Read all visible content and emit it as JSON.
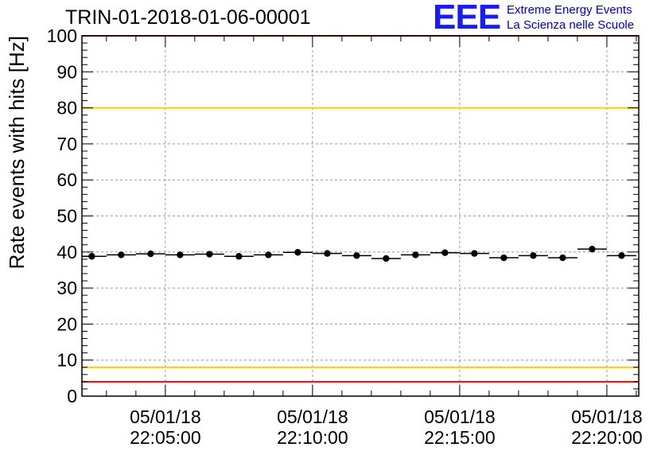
{
  "header": {
    "run_title": "TRIN-01-2018-01-06-00001",
    "logo_mark": "EEE",
    "logo_line1": "Extreme Energy Events",
    "logo_line2": "La Scienza nelle Scuole"
  },
  "colors": {
    "axis": "#000000",
    "grid": "#9a9a9a",
    "marker": "#000000",
    "red_threshold": "#ff0000",
    "yellow_threshold": "#ffcc00",
    "logo": "#1a1aff"
  },
  "chart_data": {
    "type": "scatter",
    "title": "TRIN-01-2018-01-06-00001",
    "ylabel": "Rate events with hits [Hz]",
    "xlabel": "",
    "ylim": [
      0,
      100
    ],
    "yticks": [
      0,
      10,
      20,
      30,
      40,
      50,
      60,
      70,
      80,
      90,
      100
    ],
    "xlim": [
      "05/01/18 22:02:10",
      "05/01/18 22:21:05"
    ],
    "xticks": [
      {
        "date": "05/01/18",
        "time": "22:05:00"
      },
      {
        "date": "05/01/18",
        "time": "22:10:00"
      },
      {
        "date": "05/01/18",
        "time": "22:15:00"
      },
      {
        "date": "05/01/18",
        "time": "22:20:00"
      }
    ],
    "grid": true,
    "threshold_lines": [
      {
        "value": 100,
        "color": "red"
      },
      {
        "value": 80,
        "color": "yellow"
      },
      {
        "value": 8,
        "color": "yellow"
      },
      {
        "value": 4,
        "color": "red"
      }
    ],
    "series": [
      {
        "points": [
          {
            "x": "22:02:30",
            "y": 38.8
          },
          {
            "x": "22:03:30",
            "y": 39.2
          },
          {
            "x": "22:04:30",
            "y": 39.5
          },
          {
            "x": "22:05:30",
            "y": 39.2
          },
          {
            "x": "22:06:30",
            "y": 39.4
          },
          {
            "x": "22:07:30",
            "y": 38.8
          },
          {
            "x": "22:08:30",
            "y": 39.2
          },
          {
            "x": "22:09:30",
            "y": 39.9
          },
          {
            "x": "22:10:30",
            "y": 39.6
          },
          {
            "x": "22:11:30",
            "y": 39.0
          },
          {
            "x": "22:12:30",
            "y": 38.2
          },
          {
            "x": "22:13:30",
            "y": 39.2
          },
          {
            "x": "22:14:30",
            "y": 39.8
          },
          {
            "x": "22:15:30",
            "y": 39.6
          },
          {
            "x": "22:16:30",
            "y": 38.4
          },
          {
            "x": "22:17:30",
            "y": 39.0
          },
          {
            "x": "22:18:30",
            "y": 38.4
          },
          {
            "x": "22:19:30",
            "y": 40.8
          },
          {
            "x": "22:20:30",
            "y": 39.0
          }
        ]
      }
    ]
  }
}
